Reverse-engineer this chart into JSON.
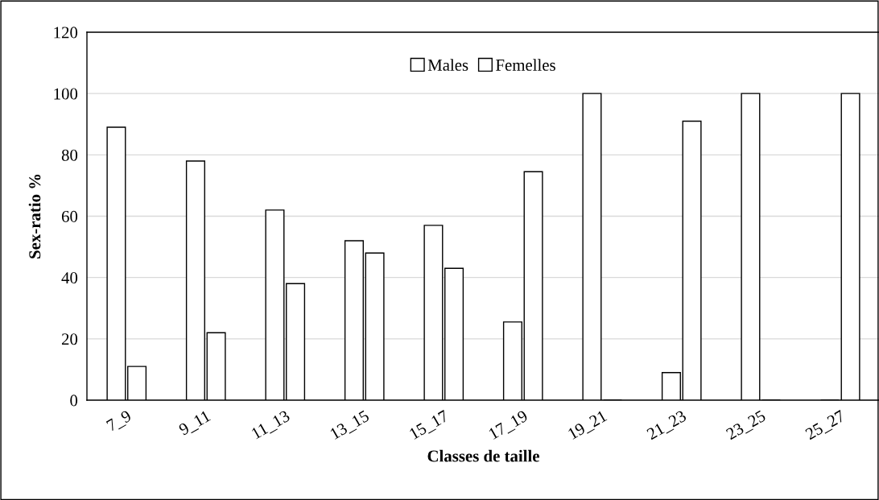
{
  "chart_data": {
    "type": "bar",
    "categories": [
      "7_9",
      "9_11",
      "11_13",
      "13_15",
      "15_17",
      "17_19",
      "19_21",
      "21_23",
      "23_25",
      "25_27"
    ],
    "series": [
      {
        "name": "Males",
        "color": "#ffffff",
        "values": [
          89,
          78,
          62,
          52,
          57,
          25.5,
          100,
          9,
          100,
          0
        ]
      },
      {
        "name": "Femelles",
        "color": "#ffffff",
        "values": [
          11,
          22,
          38,
          48,
          43,
          74.5,
          0,
          91,
          0,
          100
        ]
      }
    ],
    "xlabel": "Classes de taille",
    "ylabel": "Sex-ratio %",
    "ylim": [
      0,
      120
    ],
    "yticks": [
      0,
      20,
      40,
      60,
      80,
      100,
      120
    ],
    "grid": "y",
    "legend": "top"
  }
}
